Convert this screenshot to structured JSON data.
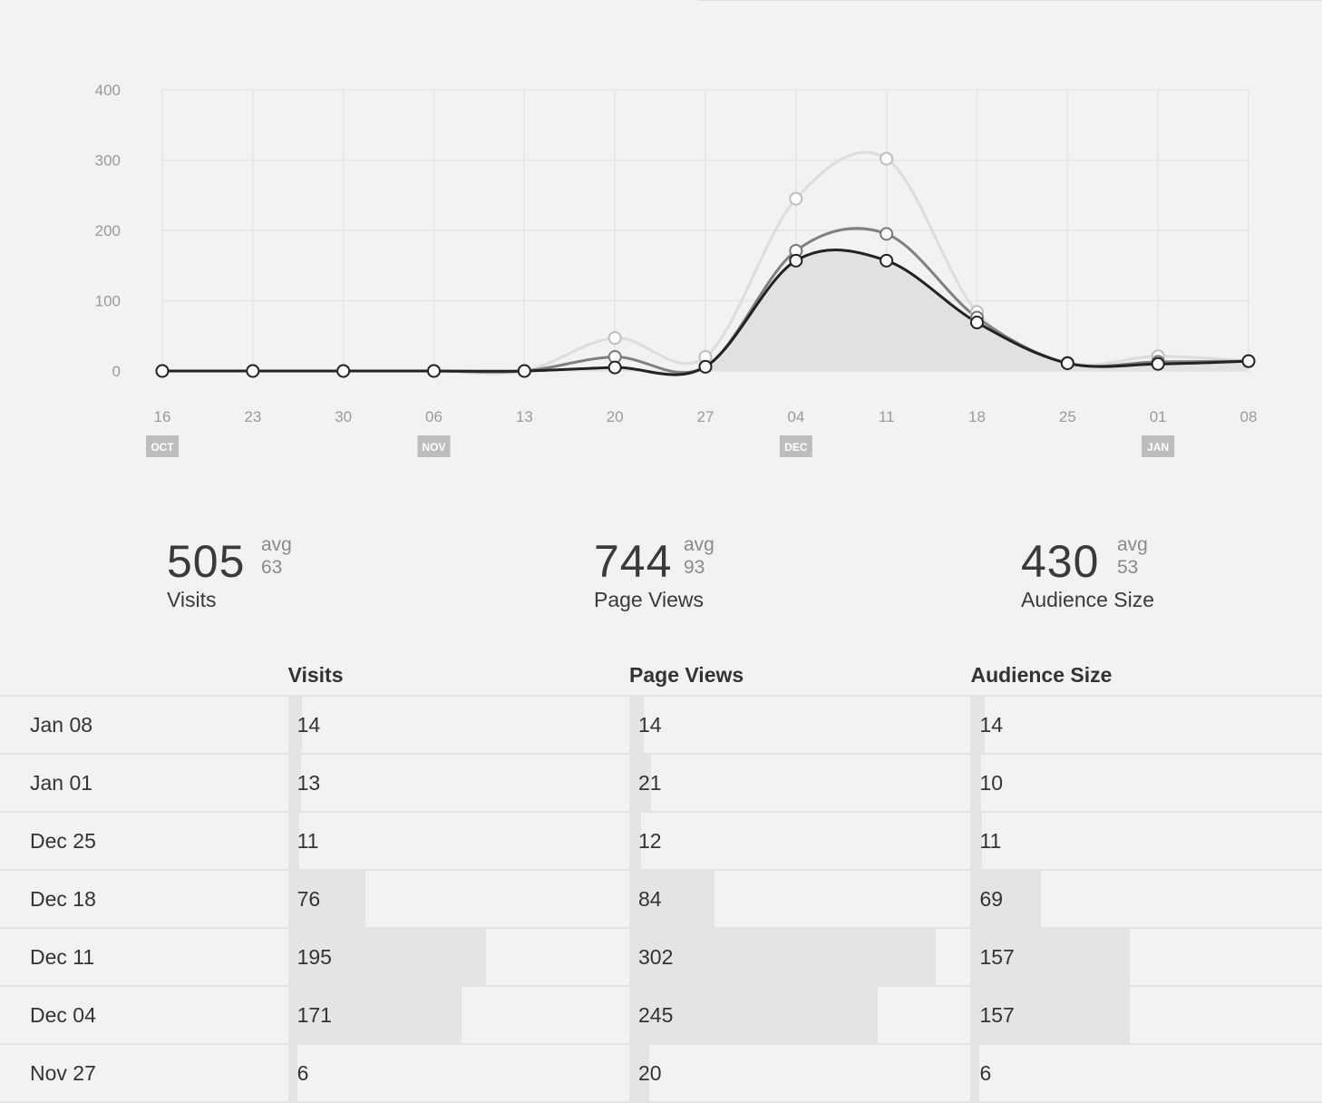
{
  "chart_data": {
    "type": "line",
    "x_ticks": [
      "16",
      "23",
      "30",
      "06",
      "13",
      "20",
      "27",
      "04",
      "11",
      "18",
      "25",
      "01",
      "08"
    ],
    "month_labels": [
      {
        "label": "OCT",
        "at": "16"
      },
      {
        "label": "NOV",
        "at": "06"
      },
      {
        "label": "DEC",
        "at": "04"
      },
      {
        "label": "JAN",
        "at": "01"
      }
    ],
    "y_ticks": [
      0,
      100,
      200,
      300,
      400
    ],
    "ylim": [
      0,
      400
    ],
    "grid": true,
    "series": [
      {
        "color": "#dddddd",
        "values": [
          0,
          0,
          0,
          0,
          0,
          47,
          20,
          245,
          302,
          84,
          12,
          21,
          14
        ]
      },
      {
        "color": "#7f7f7f",
        "values": [
          0,
          0,
          0,
          0,
          0,
          20,
          6,
          171,
          195,
          76,
          11,
          13,
          14
        ]
      },
      {
        "color": "#222222",
        "values": [
          0,
          0,
          0,
          0,
          0,
          5,
          6,
          157,
          157,
          69,
          11,
          10,
          14
        ],
        "area_fill": "#e1e1e1"
      }
    ]
  },
  "summary": [
    {
      "value": "505",
      "avg_label": "avg",
      "avg_value": "63",
      "label": "Visits"
    },
    {
      "value": "744",
      "avg_label": "avg",
      "avg_value": "93",
      "label": "Page Views"
    },
    {
      "value": "430",
      "avg_label": "avg",
      "avg_value": "53",
      "label": "Audience Size"
    }
  ],
  "table": {
    "headers": [
      "Visits",
      "Page Views",
      "Audience Size"
    ],
    "max_value": 302,
    "rows": [
      {
        "date": "Jan 08",
        "visits": "14",
        "views": "14",
        "audience": "14"
      },
      {
        "date": "Jan 01",
        "visits": "13",
        "views": "21",
        "audience": "10"
      },
      {
        "date": "Dec 25",
        "visits": "11",
        "views": "12",
        "audience": "11"
      },
      {
        "date": "Dec 18",
        "visits": "76",
        "views": "84",
        "audience": "69"
      },
      {
        "date": "Dec 11",
        "visits": "195",
        "views": "302",
        "audience": "157"
      },
      {
        "date": "Dec 04",
        "visits": "171",
        "views": "245",
        "audience": "157"
      },
      {
        "date": "Nov 27",
        "visits": "6",
        "views": "20",
        "audience": "6"
      }
    ]
  }
}
